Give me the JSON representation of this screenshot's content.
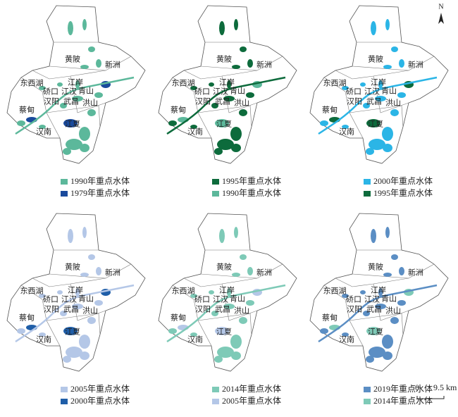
{
  "north": "N",
  "scale": {
    "start": "0",
    "end": "9.5 km"
  },
  "districts": [
    {
      "label": "黄陂"
    },
    {
      "label": "新洲"
    },
    {
      "label": "东西湖"
    },
    {
      "label": "蔡甸"
    },
    {
      "label": "汉南"
    },
    {
      "label": "江夏"
    },
    {
      "label": "江岸"
    },
    {
      "label": "硚口"
    },
    {
      "label": "江汉"
    },
    {
      "label": "青山"
    },
    {
      "label": "汉阳"
    },
    {
      "label": "武昌"
    },
    {
      "label": "洪山"
    }
  ],
  "panels": [
    {
      "legend": [
        {
          "label": "1990年重点水体",
          "color": "#5cb89b"
        },
        {
          "label": "1979年重点水体",
          "color": "#1a4a9c"
        }
      ]
    },
    {
      "legend": [
        {
          "label": "1995年重点水体",
          "color": "#0d6b3c"
        },
        {
          "label": "1990年重点水体",
          "color": "#5cb89b"
        }
      ]
    },
    {
      "legend": [
        {
          "label": "2000年重点水体",
          "color": "#2bb5e6"
        },
        {
          "label": "1995年重点水体",
          "color": "#0d6b3c"
        }
      ]
    },
    {
      "legend": [
        {
          "label": "2005年重点水体",
          "color": "#b4c7e7"
        },
        {
          "label": "2000年重点水体",
          "color": "#1f5ea8"
        }
      ]
    },
    {
      "legend": [
        {
          "label": "2014年重点水体",
          "color": "#7ecab7"
        },
        {
          "label": "2005年重点水体",
          "color": "#b4c7e7"
        }
      ]
    },
    {
      "legend": [
        {
          "label": "2019年重点水体",
          "color": "#5b8ec4"
        },
        {
          "label": "2014年重点水体",
          "color": "#7ecab7"
        }
      ]
    }
  ]
}
